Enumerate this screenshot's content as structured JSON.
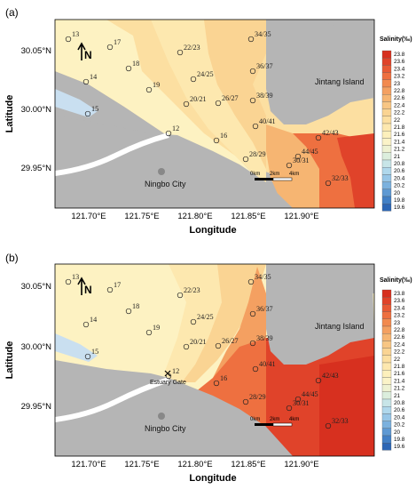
{
  "chart_data": [
    {
      "type": "heatmap",
      "panel_label": "(a)",
      "xlabel": "Longitude",
      "ylabel": "Latitude",
      "x_ticks": [
        "121.70°E",
        "121.75°E",
        "121.80°E",
        "121.85°E",
        "121.90°E"
      ],
      "y_ticks": [
        "30.05°N",
        "30.00°N",
        "29.95°N"
      ],
      "places": [
        "Jintang Island",
        "Ningbo City"
      ],
      "north_arrow": "N",
      "scale_labels": [
        "0km",
        "2km",
        "4km"
      ],
      "colorbar": {
        "title": "Salinity(‰)",
        "levels": [
          "23.8",
          "23.6",
          "23.4",
          "23.2",
          "23",
          "22.8",
          "22.6",
          "22.4",
          "22.2",
          "22",
          "21.8",
          "21.6",
          "21.4",
          "21.2",
          "21",
          "20.8",
          "20.6",
          "20.4",
          "20.2",
          "20",
          "19.8",
          "19.6"
        ]
      },
      "stations": [
        "13",
        "17",
        "22/23",
        "34/35",
        "18",
        "24/25",
        "36/37",
        "14",
        "19",
        "26/27",
        "38/39",
        "15",
        "20/21",
        "12",
        "16",
        "40/41",
        "42/43",
        "28/29",
        "44/45",
        "30/31",
        "32/33"
      ]
    },
    {
      "type": "heatmap",
      "panel_label": "(b)",
      "xlabel": "Longitude",
      "ylabel": "Latitude",
      "x_ticks": [
        "121.70°E",
        "121.75°E",
        "121.80°E",
        "121.85°E",
        "121.90°E"
      ],
      "y_ticks": [
        "30.05°N",
        "30.00°N",
        "29.95°N"
      ],
      "places": [
        "Jintang Island",
        "Ningbo City",
        "Estuary Gate"
      ],
      "north_arrow": "N",
      "scale_labels": [
        "0km",
        "2km",
        "4km"
      ],
      "colorbar": {
        "title": "Salinity(‰)",
        "levels": [
          "23.8",
          "23.6",
          "23.4",
          "23.2",
          "23",
          "22.8",
          "22.6",
          "22.4",
          "22.2",
          "22",
          "21.8",
          "21.6",
          "21.4",
          "21.2",
          "21",
          "20.8",
          "20.6",
          "20.4",
          "20.2",
          "20",
          "19.8",
          "19.6"
        ]
      },
      "stations": [
        "13",
        "17",
        "22/23",
        "34/35",
        "18",
        "24/25",
        "36/37",
        "14",
        "19",
        "26/27",
        "38/39",
        "15",
        "20/21",
        "12",
        "16",
        "40/41",
        "42/43",
        "28/29",
        "44/45",
        "30/31",
        "32/33"
      ]
    }
  ],
  "colors": {
    "land": "#b5b5b5",
    "coast_light": "#c9dff0",
    "colorbar": [
      "#d7301f",
      "#e0432a",
      "#e85a35",
      "#ee7040",
      "#f28a4f",
      "#f4a061",
      "#f6b572",
      "#f8c684",
      "#fad493",
      "#fcdfa1",
      "#fde8af",
      "#fdf0bc",
      "#fbf3c8",
      "#eef2d3",
      "#dceedd",
      "#c8e5e8",
      "#b0d8ec",
      "#97c6e7",
      "#7bb1de",
      "#5e99d3",
      "#4280c6",
      "#2c66b5"
    ]
  }
}
